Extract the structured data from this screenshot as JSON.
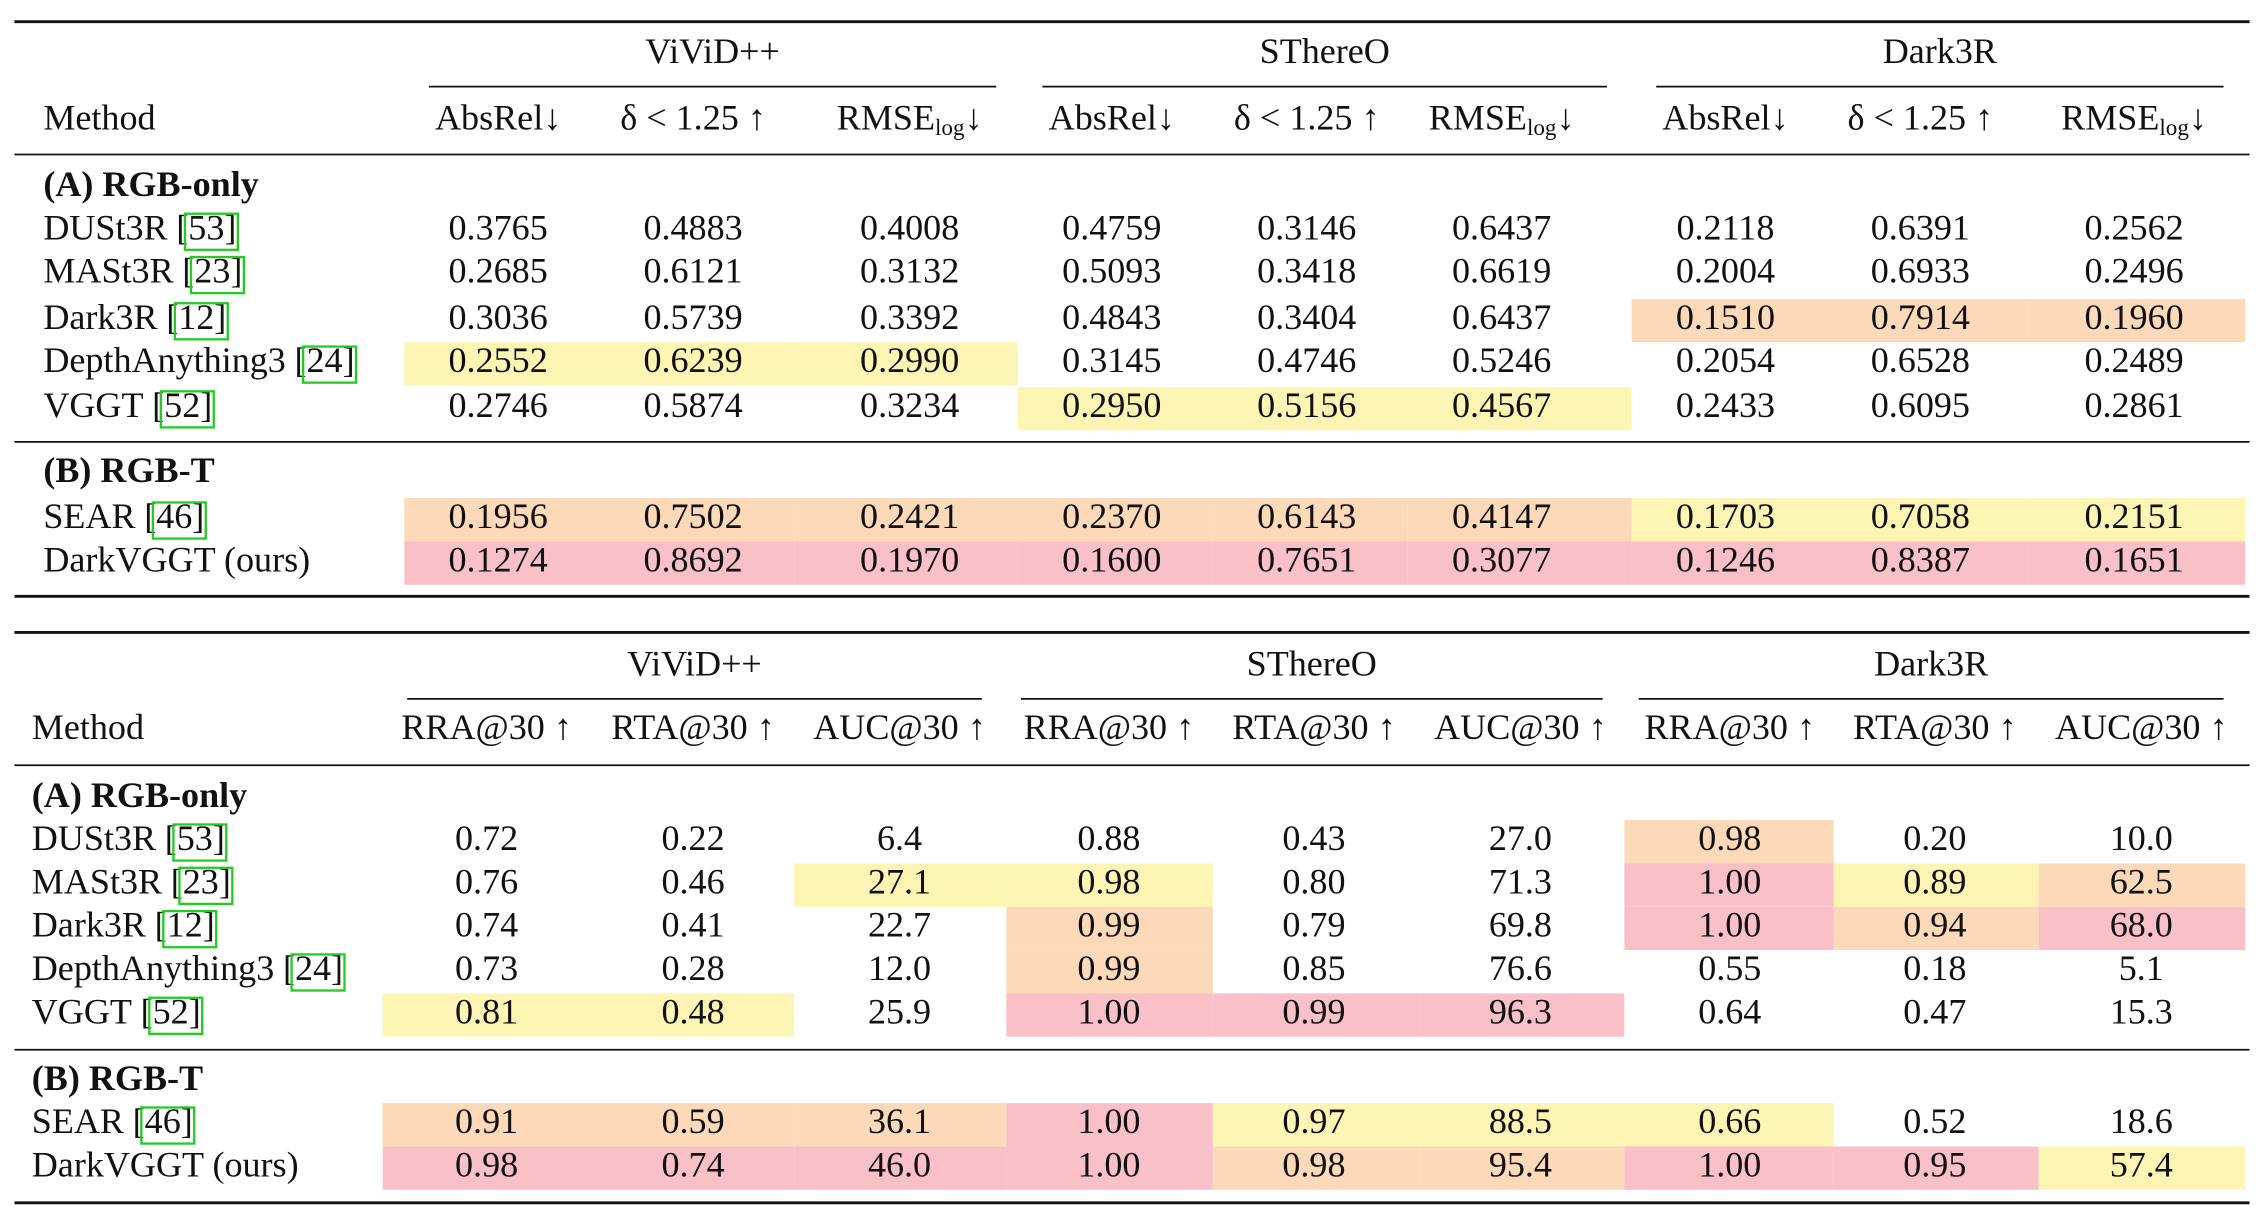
{
  "tables": [
    {
      "groups": [
        "ViViD++",
        "SThereO",
        "Dark3R"
      ],
      "method_header": "Method",
      "columns": [
        "AbsRel↓",
        "δ < 1.25 ↑",
        {
          "text": "RMSE",
          "sub": "log",
          "after": "↓"
        },
        "AbsRel↓",
        "δ < 1.25 ↑",
        {
          "text": "RMSE",
          "sub": "log",
          "after": "↓"
        },
        "AbsRel↓",
        "δ < 1.25 ↑",
        {
          "text": "RMSE",
          "sub": "log",
          "after": "↓"
        }
      ],
      "sections": [
        {
          "title": "(A) RGB-only",
          "rows": [
            {
              "method": "DUSt3R",
              "cite": "[53]",
              "values": [
                "0.3765",
                "0.4883",
                "0.4008",
                "0.4759",
                "0.3146",
                "0.6437",
                "0.2118",
                "0.6391",
                "0.2562"
              ],
              "colors": [
                null,
                null,
                null,
                null,
                null,
                null,
                null,
                null,
                null
              ]
            },
            {
              "method": "MASt3R",
              "cite": "[23]",
              "values": [
                "0.2685",
                "0.6121",
                "0.3132",
                "0.5093",
                "0.3418",
                "0.6619",
                "0.2004",
                "0.6933",
                "0.2496"
              ],
              "colors": [
                null,
                null,
                null,
                null,
                null,
                null,
                null,
                null,
                null
              ]
            },
            {
              "method": "Dark3R",
              "cite": "[12]",
              "values": [
                "0.3036",
                "0.5739",
                "0.3392",
                "0.4843",
                "0.3404",
                "0.6437",
                "0.1510",
                "0.7914",
                "0.1960"
              ],
              "colors": [
                null,
                null,
                null,
                null,
                null,
                null,
                "#fcd9b8",
                "#fcd9b8",
                "#fcd9b8"
              ]
            },
            {
              "method": "DepthAnything3",
              "cite": "[24]",
              "values": [
                "0.2552",
                "0.6239",
                "0.2990",
                "0.3145",
                "0.4746",
                "0.5246",
                "0.2054",
                "0.6528",
                "0.2489"
              ],
              "colors": [
                "#fcf5b3",
                "#fcf5b3",
                "#fcf5b3",
                null,
                null,
                null,
                null,
                null,
                null
              ]
            },
            {
              "method": "VGGT",
              "cite": "[52]",
              "values": [
                "0.2746",
                "0.5874",
                "0.3234",
                "0.2950",
                "0.5156",
                "0.4567",
                "0.2433",
                "0.6095",
                "0.2861"
              ],
              "colors": [
                null,
                null,
                null,
                "#fcf5b3",
                "#fcf5b3",
                "#fcf5b3",
                null,
                null,
                null
              ]
            }
          ]
        },
        {
          "title": "(B) RGB-T",
          "rows": [
            {
              "method": "SEAR",
              "cite": "[46]",
              "values": [
                "0.1956",
                "0.7502",
                "0.2421",
                "0.2370",
                "0.6143",
                "0.4147",
                "0.1703",
                "0.7058",
                "0.2151"
              ],
              "colors": [
                "#fcd9b8",
                "#fcd9b8",
                "#fcd9b8",
                "#fcd9b8",
                "#fcd9b8",
                "#fcd9b8",
                "#fcf5b3",
                "#fcf5b3",
                "#fcf5b3"
              ]
            },
            {
              "method": "DarkVGGT (ours)",
              "values": [
                "0.1274",
                "0.8692",
                "0.1970",
                "0.1600",
                "0.7651",
                "0.3077",
                "0.1246",
                "0.8387",
                "0.1651"
              ],
              "colors": [
                "#f9c0c8",
                "#f9c0c8",
                "#f9c0c8",
                "#f9c0c8",
                "#f9c0c8",
                "#f9c0c8",
                "#f9c0c8",
                "#f9c0c8",
                "#f9c0c8"
              ]
            }
          ]
        }
      ]
    },
    {
      "groups": [
        "ViViD++",
        "SThereO",
        "Dark3R"
      ],
      "method_header": "Method",
      "columns": [
        "RRA@30 ↑",
        "RTA@30 ↑",
        "AUC@30 ↑",
        "RRA@30 ↑",
        "RTA@30 ↑",
        "AUC@30 ↑",
        "RRA@30 ↑",
        "RTA@30 ↑",
        "AUC@30 ↑"
      ],
      "sections": [
        {
          "title": "(A) RGB-only",
          "rows": [
            {
              "method": "DUSt3R",
              "cite": "[53]",
              "values": [
                "0.72",
                "0.22",
                "6.4",
                "0.88",
                "0.43",
                "27.0",
                "0.98",
                "0.20",
                "10.0"
              ],
              "colors": [
                null,
                null,
                null,
                null,
                null,
                null,
                "#fcd9b8",
                null,
                null
              ]
            },
            {
              "method": "MASt3R",
              "cite": "[23]",
              "values": [
                "0.76",
                "0.46",
                "27.1",
                "0.98",
                "0.80",
                "71.3",
                "1.00",
                "0.89",
                "62.5"
              ],
              "colors": [
                null,
                null,
                "#fcf5b3",
                "#fcf5b3",
                null,
                null,
                "#f9c0c8",
                "#fcf5b3",
                "#fcd9b8"
              ]
            },
            {
              "method": "Dark3R",
              "cite": "[12]",
              "values": [
                "0.74",
                "0.41",
                "22.7",
                "0.99",
                "0.79",
                "69.8",
                "1.00",
                "0.94",
                "68.0"
              ],
              "colors": [
                null,
                null,
                null,
                "#fcd9b8",
                null,
                null,
                "#f9c0c8",
                "#fcd9b8",
                "#f9c0c8"
              ]
            },
            {
              "method": "DepthAnything3",
              "cite": "[24]",
              "values": [
                "0.73",
                "0.28",
                "12.0",
                "0.99",
                "0.85",
                "76.6",
                "0.55",
                "0.18",
                "5.1"
              ],
              "colors": [
                null,
                null,
                null,
                "#fcd9b8",
                null,
                null,
                null,
                null,
                null
              ]
            },
            {
              "method": "VGGT",
              "cite": "[52]",
              "values": [
                "0.81",
                "0.48",
                "25.9",
                "1.00",
                "0.99",
                "96.3",
                "0.64",
                "0.47",
                "15.3"
              ],
              "colors": [
                "#fcf5b3",
                "#fcf5b3",
                null,
                "#f9c0c8",
                "#f9c0c8",
                "#f9c0c8",
                null,
                null,
                null
              ]
            }
          ]
        },
        {
          "title": "(B) RGB-T",
          "rows": [
            {
              "method": "SEAR",
              "cite": "[46]",
              "values": [
                "0.91",
                "0.59",
                "36.1",
                "1.00",
                "0.97",
                "88.5",
                "0.66",
                "0.52",
                "18.6"
              ],
              "colors": [
                "#fcd9b8",
                "#fcd9b8",
                "#fcd9b8",
                "#f9c0c8",
                "#fcf5b3",
                "#fcf5b3",
                "#fcf5b3",
                null,
                null
              ]
            },
            {
              "method": "DarkVGGT (ours)",
              "values": [
                "0.98",
                "0.74",
                "46.0",
                "1.00",
                "0.98",
                "95.4",
                "1.00",
                "0.95",
                "57.4"
              ],
              "colors": [
                "#f9c0c8",
                "#f9c0c8",
                "#f9c0c8",
                "#f9c0c8",
                "#fcd9b8",
                "#fcd9b8",
                "#f9c0c8",
                "#f9c0c8",
                "#fcf5b3"
              ]
            }
          ]
        }
      ]
    }
  ]
}
